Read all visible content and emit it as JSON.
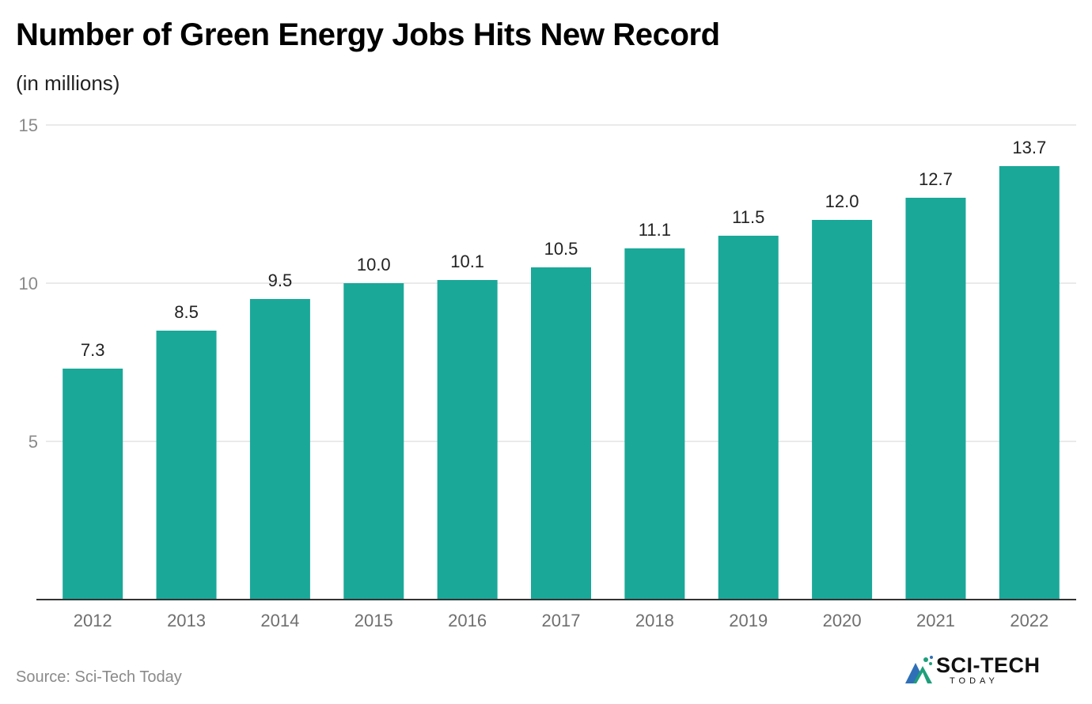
{
  "chart_data": {
    "type": "bar",
    "title": "Number of Green Energy Jobs Hits New Record",
    "subtitle": "(in millions)",
    "categories": [
      "2012",
      "2013",
      "2014",
      "2015",
      "2016",
      "2017",
      "2018",
      "2019",
      "2020",
      "2021",
      "2022"
    ],
    "values": [
      7.3,
      8.5,
      9.5,
      10.0,
      10.1,
      10.5,
      11.1,
      11.5,
      12.0,
      12.7,
      13.7
    ],
    "value_labels": [
      "7.3",
      "8.5",
      "9.5",
      "10.0",
      "10.1",
      "10.5",
      "11.1",
      "11.5",
      "12.0",
      "12.7",
      "13.7"
    ],
    "ylim": [
      0,
      15
    ],
    "yticks": [
      5,
      10,
      15
    ],
    "xlabel": "",
    "ylabel": "",
    "grid": true,
    "bar_color": "#1aa899"
  },
  "source": "Source: Sci-Tech Today",
  "logo": {
    "main_text": "SCI-TECH",
    "sub_text": "TODAY",
    "accent_colors": [
      "#1e9f7a",
      "#2f6fb8"
    ]
  }
}
